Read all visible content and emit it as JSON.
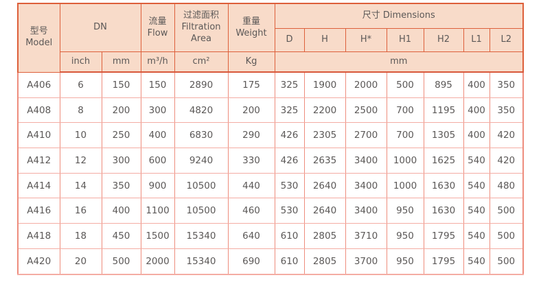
{
  "table": {
    "header": {
      "model": {
        "zh": "型号",
        "en": "Model"
      },
      "dn": "DN",
      "flow": {
        "zh": "流量",
        "en": "Flow"
      },
      "filtration": {
        "zh": "过滤面积",
        "en": "Filtration Area"
      },
      "weight": {
        "zh": "重量",
        "en": "Weight"
      },
      "dimensions": {
        "zh": "尺寸",
        "en": "Dimensions"
      },
      "dim_cols": [
        "D",
        "H",
        "H*",
        "H1",
        "H2",
        "L1",
        "L2"
      ],
      "units": {
        "inch": "inch",
        "mm": "mm",
        "flow": "m³/h",
        "area": "cm²",
        "weight": "Kg",
        "dims": "mm"
      }
    },
    "rows": [
      [
        "A406",
        "6",
        "150",
        "150",
        "2890",
        "175",
        "325",
        "1900",
        "2000",
        "500",
        "895",
        "400",
        "350"
      ],
      [
        "A408",
        "8",
        "200",
        "300",
        "4820",
        "200",
        "325",
        "2200",
        "2500",
        "700",
        "1195",
        "400",
        "350"
      ],
      [
        "A410",
        "10",
        "250",
        "400",
        "6830",
        "290",
        "426",
        "2305",
        "2700",
        "700",
        "1305",
        "400",
        "420"
      ],
      [
        "A412",
        "12",
        "300",
        "600",
        "9240",
        "330",
        "426",
        "2635",
        "3400",
        "1000",
        "1625",
        "540",
        "420"
      ],
      [
        "A414",
        "14",
        "350",
        "900",
        "10500",
        "440",
        "530",
        "2640",
        "3400",
        "1000",
        "1630",
        "540",
        "480"
      ],
      [
        "A416",
        "16",
        "400",
        "1100",
        "10500",
        "460",
        "530",
        "2640",
        "3400",
        "950",
        "1630",
        "540",
        "500"
      ],
      [
        "A418",
        "18",
        "450",
        "1500",
        "15340",
        "640",
        "610",
        "2805",
        "3710",
        "950",
        "1795",
        "540",
        "500"
      ],
      [
        "A420",
        "20",
        "500",
        "2000",
        "15340",
        "690",
        "610",
        "2805",
        "3700",
        "950",
        "1795",
        "540",
        "500"
      ]
    ]
  },
  "colors": {
    "header_bg": "#f8dbc9",
    "header_border": "#dd5f3a",
    "header_bottom_separator": "#d8573a",
    "body_border_vertical": "#ee8d7d",
    "body_border_horizontal": "#f4aca3",
    "text": "#5b5857"
  },
  "chart_data": {
    "type": "table",
    "title": "",
    "columns": [
      "型号 Model",
      "DN inch",
      "DN mm",
      "流量 Flow m³/h",
      "过滤面积 Filtration Area cm²",
      "重量 Weight Kg",
      "D mm",
      "H mm",
      "H* mm",
      "H1 mm",
      "H2 mm",
      "L1 mm",
      "L2 mm"
    ],
    "rows": [
      [
        "A406",
        6,
        150,
        150,
        2890,
        175,
        325,
        1900,
        2000,
        500,
        895,
        400,
        350
      ],
      [
        "A408",
        8,
        200,
        300,
        4820,
        200,
        325,
        2200,
        2500,
        700,
        1195,
        400,
        350
      ],
      [
        "A410",
        10,
        250,
        400,
        6830,
        290,
        426,
        2305,
        2700,
        700,
        1305,
        400,
        420
      ],
      [
        "A412",
        12,
        300,
        600,
        9240,
        330,
        426,
        2635,
        3400,
        1000,
        1625,
        540,
        420
      ],
      [
        "A414",
        14,
        350,
        900,
        10500,
        440,
        530,
        2640,
        3400,
        1000,
        1630,
        540,
        480
      ],
      [
        "A416",
        16,
        400,
        1100,
        10500,
        460,
        530,
        2640,
        3400,
        950,
        1630,
        540,
        500
      ],
      [
        "A418",
        18,
        450,
        1500,
        15340,
        640,
        610,
        2805,
        3710,
        950,
        1795,
        540,
        500
      ],
      [
        "A420",
        20,
        500,
        2000,
        15340,
        690,
        610,
        2805,
        3700,
        950,
        1795,
        540,
        500
      ]
    ]
  }
}
